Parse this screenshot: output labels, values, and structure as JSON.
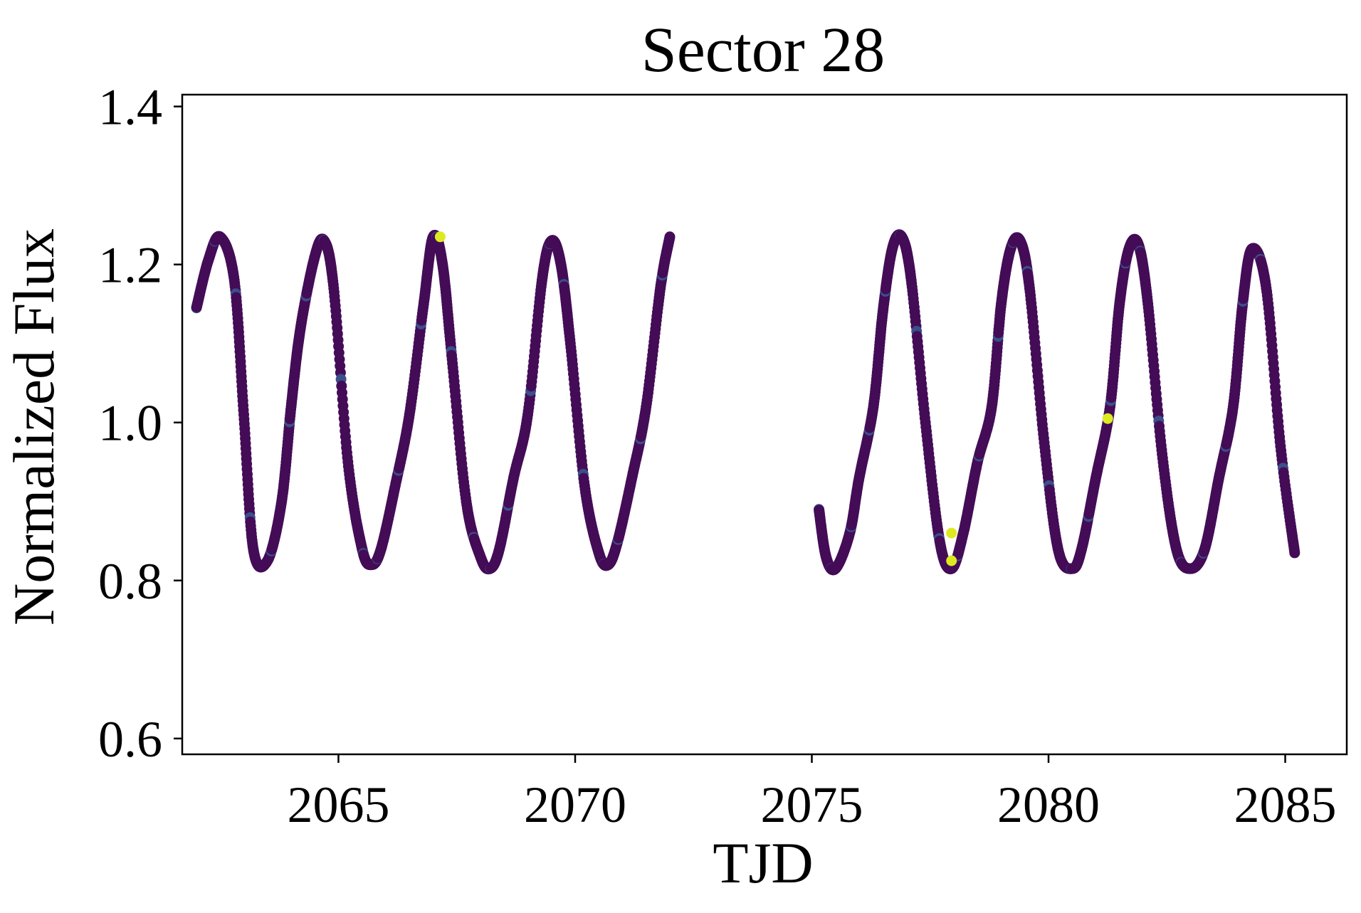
{
  "chart_data": {
    "type": "scatter",
    "title": "Sector 28",
    "xlabel": "TJD",
    "ylabel": "Normalized Flux",
    "xlim": [
      2061.7,
      2086.3
    ],
    "ylim": [
      0.58,
      1.415
    ],
    "xticks": [
      2065,
      2070,
      2075,
      2080,
      2085
    ],
    "xtick_labels": [
      "2065",
      "2070",
      "2075",
      "2080",
      "2085"
    ],
    "yticks": [
      0.6,
      0.8,
      1.0,
      1.2,
      1.4
    ],
    "ytick_labels": [
      "0.6",
      "0.8",
      "1.0",
      "1.2",
      "1.4"
    ],
    "grid": false,
    "legend": "none",
    "colormap": "viridis",
    "colors": {
      "points_main": "#440c57",
      "points_alt": "#3b4f8a",
      "points_highlight": "#ddea22",
      "points_mid": "#22a385",
      "axes": "#000000",
      "background": "#ffffff"
    },
    "segments": [
      {
        "x": [
          2062.0,
          2062.25,
          2062.5,
          2062.8,
          2063.0,
          2063.2,
          2063.5,
          2063.8,
          2064.0,
          2064.2,
          2064.5,
          2064.7,
          2064.9,
          2065.2,
          2065.5,
          2065.7,
          2065.9,
          2066.2,
          2066.5,
          2066.8,
          2067.0,
          2067.2,
          2067.4,
          2067.7,
          2068.0,
          2068.2,
          2068.4,
          2068.7,
          2069.0,
          2069.3,
          2069.5,
          2069.7,
          2069.9,
          2070.2,
          2070.5,
          2070.7,
          2070.9,
          2071.2,
          2071.5,
          2071.8,
          2072.0
        ],
        "y": [
          1.145,
          1.205,
          1.235,
          1.18,
          1.01,
          0.84,
          0.825,
          0.9,
          1.02,
          1.12,
          1.21,
          1.23,
          1.17,
          0.95,
          0.84,
          0.82,
          0.84,
          0.92,
          1.01,
          1.15,
          1.235,
          1.2,
          1.08,
          0.9,
          0.83,
          0.815,
          0.84,
          0.93,
          1.01,
          1.18,
          1.23,
          1.2,
          1.1,
          0.92,
          0.835,
          0.82,
          0.85,
          0.93,
          1.02,
          1.17,
          1.235
        ]
      },
      {
        "x": [
          2075.15,
          2075.3,
          2075.5,
          2075.8,
          2076.0,
          2076.3,
          2076.5,
          2076.7,
          2076.9,
          2077.1,
          2077.4,
          2077.7,
          2077.95,
          2078.2,
          2078.5,
          2078.8,
          2079.0,
          2079.2,
          2079.4,
          2079.6,
          2079.9,
          2080.2,
          2080.5,
          2080.7,
          2081.0,
          2081.3,
          2081.5,
          2081.7,
          2081.9,
          2082.1,
          2082.4,
          2082.7,
          2083.0,
          2083.3,
          2083.6,
          2083.9,
          2084.1,
          2084.3,
          2084.6,
          2084.9,
          2085.2
        ],
        "y": [
          0.89,
          0.83,
          0.815,
          0.86,
          0.93,
          1.02,
          1.14,
          1.22,
          1.235,
          1.18,
          1.0,
          0.85,
          0.815,
          0.86,
          0.95,
          1.02,
          1.15,
          1.22,
          1.23,
          1.17,
          0.98,
          0.84,
          0.815,
          0.84,
          0.93,
          1.02,
          1.15,
          1.22,
          1.225,
          1.15,
          0.96,
          0.84,
          0.815,
          0.84,
          0.93,
          1.02,
          1.15,
          1.22,
          1.17,
          0.97,
          0.835
        ]
      }
    ],
    "highlights": [
      {
        "x": 2067.15,
        "y": 1.235
      },
      {
        "x": 2077.95,
        "y": 0.86
      },
      {
        "x": 2077.95,
        "y": 0.825
      },
      {
        "x": 2081.25,
        "y": 1.005
      }
    ]
  }
}
